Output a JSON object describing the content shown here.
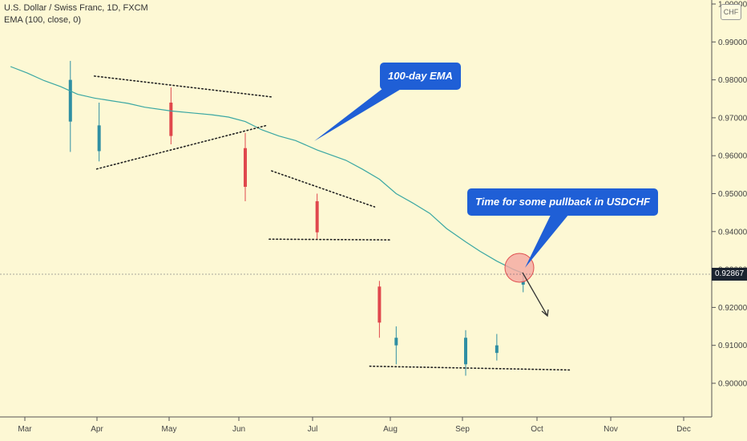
{
  "header": {
    "symbol_line": "U.S. Dollar / Swiss Franc, 1D, FXCM",
    "indicator_line": "EMA (100, close, 0)"
  },
  "currency_badge": "CHF",
  "callouts": {
    "ema": "100-day EMA",
    "pullback": "Time for some pullback in USDCHF"
  },
  "colors": {
    "background": "#fdf8d4",
    "bull_candle": "#2f8fa3",
    "bear_candle": "#e0484d",
    "ema_line": "#3aa7a3",
    "callout_bg": "#1f5fd6",
    "highlight_circle": "#f4a7a0"
  },
  "chart_data": {
    "type": "candlestick",
    "series_name": "USDCHF",
    "timeframe": "1D",
    "x_ticks": [
      "Mar",
      "Apr",
      "May",
      "Jun",
      "Jul",
      "Aug",
      "Sep",
      "Oct",
      "Nov",
      "Dec"
    ],
    "y_ticks": [
      "0.90000",
      "0.91000",
      "0.92000",
      "0.93000",
      "0.94000",
      "0.95000",
      "0.96000",
      "0.97000",
      "0.98000",
      "0.99000",
      "1.00000"
    ],
    "ylim": [
      0.9,
      1.0
    ],
    "last_price": "0.92867",
    "ema_period": 100,
    "ema_points": [
      [
        "2020-02-24",
        0.9835
      ],
      [
        "2020-03-02",
        0.9818
      ],
      [
        "2020-03-09",
        0.9798
      ],
      [
        "2020-03-16",
        0.9782
      ],
      [
        "2020-03-23",
        0.9762
      ],
      [
        "2020-03-30",
        0.9752
      ],
      [
        "2020-04-06",
        0.9745
      ],
      [
        "2020-04-13",
        0.9738
      ],
      [
        "2020-04-20",
        0.9728
      ],
      [
        "2020-05-01",
        0.9718
      ],
      [
        "2020-05-11",
        0.9712
      ],
      [
        "2020-05-18",
        0.9708
      ],
      [
        "2020-05-25",
        0.9702
      ],
      [
        "2020-06-01",
        0.969
      ],
      [
        "2020-06-08",
        0.9668
      ],
      [
        "2020-06-15",
        0.9652
      ],
      [
        "2020-06-22",
        0.964
      ],
      [
        "2020-07-01",
        0.9615
      ],
      [
        "2020-07-13",
        0.9588
      ],
      [
        "2020-07-20",
        0.9564
      ],
      [
        "2020-07-27",
        0.9538
      ],
      [
        "2020-08-03",
        0.95
      ],
      [
        "2020-08-10",
        0.9475
      ],
      [
        "2020-08-17",
        0.9448
      ],
      [
        "2020-08-24",
        0.9408
      ],
      [
        "2020-09-01",
        0.9373
      ],
      [
        "2020-09-07",
        0.9348
      ],
      [
        "2020-09-14",
        0.9322
      ],
      [
        "2020-09-21",
        0.93
      ],
      [
        "2020-09-25",
        0.929
      ]
    ],
    "candles": [
      {
        "date": "2020-03-20",
        "o": 0.969,
        "h": 0.985,
        "l": 0.961,
        "c": 0.98
      },
      {
        "date": "2020-04-01",
        "o": 0.9612,
        "h": 0.974,
        "l": 0.9585,
        "c": 0.968
      },
      {
        "date": "2020-05-01",
        "o": 0.974,
        "h": 0.978,
        "l": 0.963,
        "c": 0.9652
      },
      {
        "date": "2020-06-01",
        "o": 0.962,
        "h": 0.966,
        "l": 0.948,
        "c": 0.9518
      },
      {
        "date": "2020-07-01",
        "o": 0.948,
        "h": 0.95,
        "l": 0.938,
        "c": 0.9398
      },
      {
        "date": "2020-07-27",
        "o": 0.9255,
        "h": 0.927,
        "l": 0.912,
        "c": 0.916
      },
      {
        "date": "2020-08-03",
        "o": 0.91,
        "h": 0.915,
        "l": 0.905,
        "c": 0.912
      },
      {
        "date": "2020-09-01",
        "o": 0.905,
        "h": 0.914,
        "l": 0.902,
        "c": 0.912
      },
      {
        "date": "2020-09-14",
        "o": 0.908,
        "h": 0.913,
        "l": 0.906,
        "c": 0.91
      },
      {
        "date": "2020-09-25",
        "o": 0.926,
        "h": 0.929,
        "l": 0.924,
        "c": 0.927
      }
    ],
    "annotations": [
      {
        "type": "trendline",
        "name": "Upper triangle line"
      },
      {
        "type": "trendline",
        "name": "Lower triangle line"
      },
      {
        "type": "trendline",
        "name": "Upper wedge line"
      },
      {
        "type": "trendline",
        "name": "Support at 0.9380"
      },
      {
        "type": "trendline",
        "name": "Support at 0.9045"
      }
    ],
    "grid": false,
    "legend": "none"
  }
}
